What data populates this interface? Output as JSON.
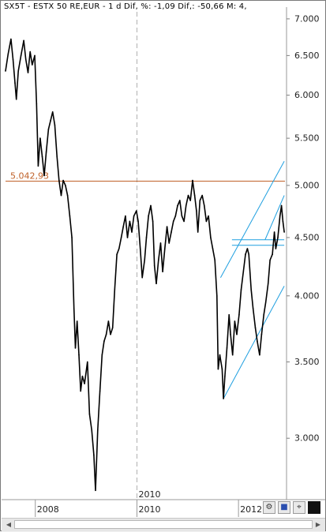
{
  "header": {
    "text": "SX5T - ESTX 50 RE,EUR -  1 d Dif, %: -1,09 Dif,: -50,66 M: 4,"
  },
  "chart_data": {
    "type": "line",
    "y_scale": "log",
    "ylim": [
      2650,
      7100
    ],
    "y_ticks": [
      {
        "value": 7000,
        "label": "7.000"
      },
      {
        "value": 6500,
        "label": "6.500"
      },
      {
        "value": 6000,
        "label": "6.000"
      },
      {
        "value": 5500,
        "label": "5.500"
      },
      {
        "value": 5000,
        "label": "5.000"
      },
      {
        "value": 4500,
        "label": "4.500"
      },
      {
        "value": 4000,
        "label": "4.000"
      },
      {
        "value": 3500,
        "label": "3.500"
      },
      {
        "value": 3000,
        "label": "3.000"
      }
    ],
    "xlim": [
      "2007-06-01",
      "2012-11-30"
    ],
    "x_ticks": [
      {
        "date": "2008-01-01",
        "label": "2008"
      },
      {
        "date": "2010-01-01",
        "label": "2010"
      },
      {
        "date": "2012-01-01",
        "label": "2012"
      }
    ],
    "vertical_marker": {
      "date": "2010-01-01",
      "label": "2010",
      "style": "dashed"
    },
    "reference_line": {
      "value": 5042.93,
      "label": "5.042,93",
      "color": "#c0622a"
    },
    "series": [
      {
        "color": "#000000",
        "points": [
          [
            "2007-06-01",
            6300
          ],
          [
            "2007-06-20",
            6520
          ],
          [
            "2007-07-10",
            6720
          ],
          [
            "2007-07-25",
            6450
          ],
          [
            "2007-08-08",
            6150
          ],
          [
            "2007-08-18",
            5950
          ],
          [
            "2007-09-01",
            6300
          ],
          [
            "2007-09-20",
            6500
          ],
          [
            "2007-10-10",
            6700
          ],
          [
            "2007-10-25",
            6450
          ],
          [
            "2007-11-10",
            6280
          ],
          [
            "2007-11-25",
            6550
          ],
          [
            "2007-12-10",
            6380
          ],
          [
            "2007-12-28",
            6500
          ],
          [
            "2008-01-10",
            5900
          ],
          [
            "2008-01-22",
            5200
          ],
          [
            "2008-02-05",
            5500
          ],
          [
            "2008-02-20",
            5300
          ],
          [
            "2008-03-05",
            5100
          ],
          [
            "2008-03-20",
            5350
          ],
          [
            "2008-04-05",
            5600
          ],
          [
            "2008-04-20",
            5700
          ],
          [
            "2008-05-05",
            5800
          ],
          [
            "2008-05-20",
            5650
          ],
          [
            "2008-06-05",
            5300
          ],
          [
            "2008-06-20",
            5050
          ],
          [
            "2008-07-05",
            4900
          ],
          [
            "2008-07-20",
            5050
          ],
          [
            "2008-08-05",
            5000
          ],
          [
            "2008-08-20",
            4900
          ],
          [
            "2008-09-05",
            4700
          ],
          [
            "2008-09-20",
            4500
          ],
          [
            "2008-10-05",
            3900
          ],
          [
            "2008-10-15",
            3600
          ],
          [
            "2008-10-28",
            3800
          ],
          [
            "2008-11-10",
            3550
          ],
          [
            "2008-11-22",
            3300
          ],
          [
            "2008-12-05",
            3400
          ],
          [
            "2008-12-20",
            3350
          ],
          [
            "2009-01-10",
            3500
          ],
          [
            "2009-01-25",
            3150
          ],
          [
            "2009-02-10",
            3050
          ],
          [
            "2009-02-25",
            2900
          ],
          [
            "2009-03-09",
            2700
          ],
          [
            "2009-03-25",
            3050
          ],
          [
            "2009-04-10",
            3300
          ],
          [
            "2009-04-25",
            3550
          ],
          [
            "2009-05-10",
            3650
          ],
          [
            "2009-05-25",
            3700
          ],
          [
            "2009-06-10",
            3800
          ],
          [
            "2009-06-25",
            3700
          ],
          [
            "2009-07-10",
            3750
          ],
          [
            "2009-07-25",
            4050
          ],
          [
            "2009-08-10",
            4350
          ],
          [
            "2009-08-25",
            4400
          ],
          [
            "2009-09-10",
            4500
          ],
          [
            "2009-09-25",
            4600
          ],
          [
            "2009-10-10",
            4700
          ],
          [
            "2009-10-25",
            4500
          ],
          [
            "2009-11-10",
            4650
          ],
          [
            "2009-11-25",
            4550
          ],
          [
            "2009-12-10",
            4700
          ],
          [
            "2009-12-28",
            4750
          ],
          [
            "2010-01-10",
            4650
          ],
          [
            "2010-01-25",
            4400
          ],
          [
            "2010-02-08",
            4150
          ],
          [
            "2010-02-25",
            4300
          ],
          [
            "2010-03-10",
            4500
          ],
          [
            "2010-03-25",
            4700
          ],
          [
            "2010-04-10",
            4800
          ],
          [
            "2010-04-25",
            4650
          ],
          [
            "2010-05-07",
            4250
          ],
          [
            "2010-05-20",
            4100
          ],
          [
            "2010-06-05",
            4300
          ],
          [
            "2010-06-20",
            4450
          ],
          [
            "2010-07-05",
            4200
          ],
          [
            "2010-07-20",
            4400
          ],
          [
            "2010-08-05",
            4600
          ],
          [
            "2010-08-20",
            4450
          ],
          [
            "2010-09-05",
            4550
          ],
          [
            "2010-09-20",
            4650
          ],
          [
            "2010-10-05",
            4700
          ],
          [
            "2010-10-20",
            4800
          ],
          [
            "2010-11-05",
            4850
          ],
          [
            "2010-11-20",
            4700
          ],
          [
            "2010-12-05",
            4650
          ],
          [
            "2010-12-20",
            4800
          ],
          [
            "2011-01-05",
            4900
          ],
          [
            "2011-01-20",
            4850
          ],
          [
            "2011-02-05",
            5050
          ],
          [
            "2011-02-20",
            4900
          ],
          [
            "2011-03-05",
            4750
          ],
          [
            "2011-03-15",
            4550
          ],
          [
            "2011-03-30",
            4850
          ],
          [
            "2011-04-15",
            4900
          ],
          [
            "2011-04-30",
            4800
          ],
          [
            "2011-05-15",
            4650
          ],
          [
            "2011-05-30",
            4700
          ],
          [
            "2011-06-15",
            4500
          ],
          [
            "2011-06-30",
            4400
          ],
          [
            "2011-07-15",
            4300
          ],
          [
            "2011-07-30",
            4000
          ],
          [
            "2011-08-08",
            3450
          ],
          [
            "2011-08-20",
            3550
          ],
          [
            "2011-09-05",
            3450
          ],
          [
            "2011-09-15",
            3250
          ],
          [
            "2011-09-25",
            3400
          ],
          [
            "2011-10-10",
            3600
          ],
          [
            "2011-10-25",
            3850
          ],
          [
            "2011-11-05",
            3700
          ],
          [
            "2011-11-20",
            3550
          ],
          [
            "2011-12-05",
            3800
          ],
          [
            "2011-12-20",
            3700
          ],
          [
            "2012-01-05",
            3850
          ],
          [
            "2012-01-20",
            4050
          ],
          [
            "2012-02-05",
            4200
          ],
          [
            "2012-02-20",
            4350
          ],
          [
            "2012-03-05",
            4400
          ],
          [
            "2012-03-15",
            4350
          ],
          [
            "2012-04-01",
            4050
          ],
          [
            "2012-04-15",
            3900
          ],
          [
            "2012-05-01",
            3750
          ],
          [
            "2012-05-15",
            3650
          ],
          [
            "2012-06-01",
            3550
          ],
          [
            "2012-06-15",
            3700
          ],
          [
            "2012-07-01",
            3850
          ],
          [
            "2012-07-15",
            3950
          ],
          [
            "2012-08-01",
            4100
          ],
          [
            "2012-08-15",
            4300
          ],
          [
            "2012-09-01",
            4350
          ],
          [
            "2012-09-15",
            4550
          ],
          [
            "2012-09-25",
            4400
          ],
          [
            "2012-10-10",
            4500
          ],
          [
            "2012-10-25",
            4700
          ],
          [
            "2012-11-05",
            4800
          ],
          [
            "2012-11-15",
            4650
          ],
          [
            "2012-11-25",
            4550
          ]
        ]
      }
    ],
    "trendlines": [
      {
        "color": "#1f9fe0",
        "from": [
          "2011-09-15",
          3250
        ],
        "to": [
          "2012-11-25",
          4080
        ]
      },
      {
        "color": "#1f9fe0",
        "from": [
          "2011-08-25",
          4150
        ],
        "to": [
          "2012-11-25",
          5250
        ]
      },
      {
        "color": "#1f9fe0",
        "from": [
          "2011-11-15",
          4480
        ],
        "to": [
          "2012-11-25",
          4480
        ]
      },
      {
        "color": "#1f9fe0",
        "from": [
          "2011-11-15",
          4430
        ],
        "to": [
          "2012-11-25",
          4430
        ]
      },
      {
        "color": "#1f9fe0",
        "from": [
          "2012-07-10",
          4480
        ],
        "to": [
          "2012-11-25",
          4900
        ]
      }
    ]
  },
  "toolbar": [
    {
      "name": "settings-icon",
      "glyph": "⚙"
    },
    {
      "name": "save-icon",
      "glyph": "■"
    },
    {
      "name": "pin-icon",
      "glyph": "⌖"
    },
    {
      "name": "color-swatch",
      "glyph": ""
    }
  ],
  "scrollbar": {
    "left_glyph": "◀",
    "right_glyph": "▶"
  }
}
